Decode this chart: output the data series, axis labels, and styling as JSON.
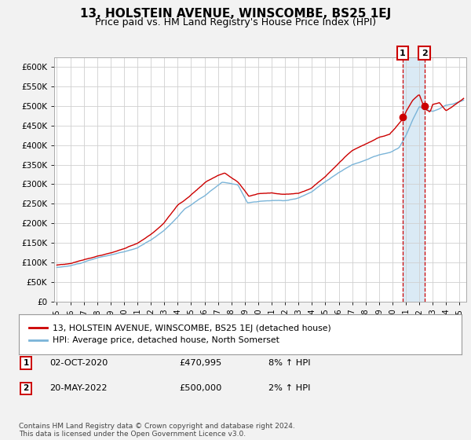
{
  "title": "13, HOLSTEIN AVENUE, WINSCOMBE, BS25 1EJ",
  "subtitle": "Price paid vs. HM Land Registry's House Price Index (HPI)",
  "title_fontsize": 11,
  "subtitle_fontsize": 9,
  "ylabel_ticks": [
    "£0",
    "£50K",
    "£100K",
    "£150K",
    "£200K",
    "£250K",
    "£300K",
    "£350K",
    "£400K",
    "£450K",
    "£500K",
    "£550K",
    "£600K"
  ],
  "ytick_values": [
    0,
    50000,
    100000,
    150000,
    200000,
    250000,
    300000,
    350000,
    400000,
    450000,
    500000,
    550000,
    600000
  ],
  "ylim": [
    0,
    625000
  ],
  "xlim_start": 1994.8,
  "xlim_end": 2025.5,
  "hpi_color": "#7ab4d8",
  "price_color": "#cc0000",
  "background_color": "#f2f2f2",
  "plot_bg_color": "#ffffff",
  "grid_color": "#d0d0d0",
  "transaction1_date_num": 2020.75,
  "transaction2_date_num": 2022.38,
  "transaction1_price": 470995,
  "transaction2_price": 500000,
  "shade_color": "#daeaf5",
  "legend_line1": "13, HOLSTEIN AVENUE, WINSCOMBE, BS25 1EJ (detached house)",
  "legend_line2": "HPI: Average price, detached house, North Somerset",
  "table_row1": [
    "1",
    "02-OCT-2020",
    "£470,995",
    "8% ↑ HPI"
  ],
  "table_row2": [
    "2",
    "20-MAY-2022",
    "£500,000",
    "2% ↑ HPI"
  ],
  "footnote": "Contains HM Land Registry data © Crown copyright and database right 2024.\nThis data is licensed under the Open Government Licence v3.0."
}
